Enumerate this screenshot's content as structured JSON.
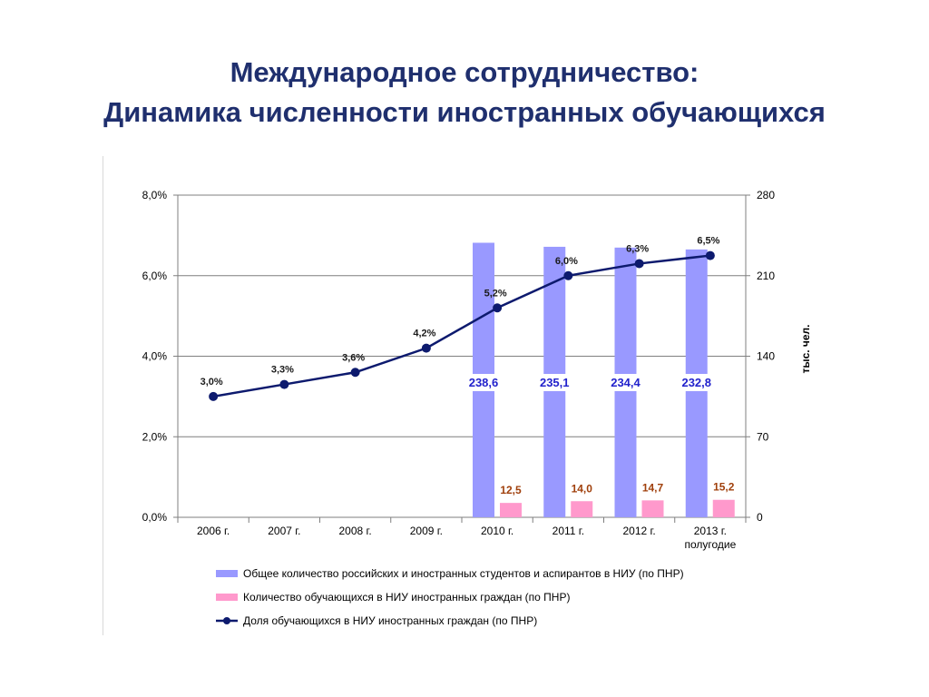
{
  "title": {
    "line1": "Международное сотрудничество:",
    "line2": "Динамика численности иностранных обучающихся"
  },
  "colors": {
    "title": "#1f2f6e",
    "total_bar": "#9999ff",
    "foreign_bar": "#ff99cc",
    "line": "#0d1a6e",
    "total_label": "#2222cc",
    "foreign_label": "#a0400c"
  },
  "chart_data": {
    "type": "bar",
    "categories": [
      "2006 г.",
      "2007 г.",
      "2008 г.",
      "2009 г.",
      "2010 г.",
      "2011 г.",
      "2012 г.",
      "2013 г.\nполугодие"
    ],
    "y_left": {
      "ticks": [
        "0,0%",
        "2,0%",
        "4,0%",
        "6,0%",
        "8,0%"
      ],
      "range": [
        0,
        8
      ]
    },
    "y_right": {
      "ticks": [
        "0",
        "70",
        "140",
        "210",
        "280"
      ],
      "range": [
        0,
        280
      ],
      "label": "тыс. чел."
    },
    "grid": true,
    "legend_position": "bottom",
    "series": [
      {
        "name": "Общее количество российских и иностранных студентов и аспирантов в НИУ (по ПНР)",
        "type": "bar",
        "axis": "right",
        "values": [
          null,
          null,
          null,
          null,
          238.6,
          235.1,
          234.4,
          232.8
        ],
        "labels": [
          "",
          "",
          "",
          "",
          "238,6",
          "235,1",
          "234,4",
          "232,8"
        ]
      },
      {
        "name": "Количество обучающихся в НИУ иностранных граждан (по ПНР)",
        "type": "bar",
        "axis": "right",
        "values": [
          null,
          null,
          null,
          null,
          12.5,
          14.0,
          14.7,
          15.2
        ],
        "labels": [
          "",
          "",
          "",
          "",
          "12,5",
          "14,0",
          "14,7",
          "15,2"
        ]
      },
      {
        "name": "Доля обучающихся в НИУ иностранных граждан (по ПНР)",
        "type": "line",
        "axis": "left",
        "values": [
          3.0,
          3.3,
          3.6,
          4.2,
          5.2,
          6.0,
          6.3,
          6.5
        ],
        "labels": [
          "3,0%",
          "3,3%",
          "3,6%",
          "4,2%",
          "5,2%",
          "6,0%",
          "6,3%",
          "6,5%"
        ]
      }
    ]
  }
}
